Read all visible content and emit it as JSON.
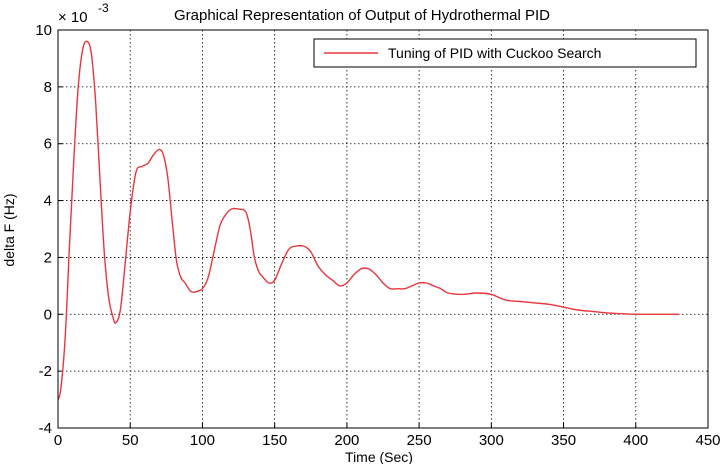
{
  "chart_data": {
    "type": "line",
    "title": "Graphical Representation of Output of Hydrothermal PID",
    "xlabel": "Time (Sec)",
    "ylabel": "delta F (Hz)",
    "y_exponent_base": "× 10",
    "y_exponent_power": "-3",
    "xlim": [
      0,
      450
    ],
    "ylim": [
      -4,
      10
    ],
    "x_ticks": [
      0,
      50,
      100,
      150,
      200,
      250,
      300,
      350,
      400,
      450
    ],
    "y_ticks": [
      -4,
      -2,
      0,
      2,
      4,
      6,
      8,
      10
    ],
    "grid": true,
    "grid_style": "dotted",
    "legend_position": "top-right",
    "line_color": "#e8373c",
    "series": [
      {
        "name": "Tuning of PID with Cuckoo Search",
        "x": [
          0,
          2,
          5,
          8,
          11,
          14,
          17,
          20,
          23,
          26,
          29,
          32,
          35,
          38,
          40,
          43,
          46,
          50,
          54,
          58,
          62,
          66,
          70,
          73,
          76,
          79,
          82,
          85,
          88,
          92,
          96,
          100,
          104,
          108,
          112,
          116,
          120,
          125,
          130,
          133,
          136,
          139,
          142,
          146,
          150,
          155,
          160,
          165,
          170,
          175,
          180,
          185,
          190,
          195,
          200,
          205,
          210,
          215,
          220,
          225,
          230,
          235,
          240,
          245,
          250,
          255,
          260,
          265,
          270,
          280,
          290,
          300,
          310,
          320,
          330,
          340,
          350,
          360,
          370,
          380,
          390,
          400,
          410,
          420,
          430
        ],
        "values": [
          -3.0,
          -2.6,
          -0.8,
          2.5,
          5.5,
          8.0,
          9.3,
          9.6,
          9.2,
          7.5,
          4.8,
          2.2,
          0.6,
          -0.1,
          -0.3,
          0.1,
          1.5,
          3.6,
          5.0,
          5.2,
          5.3,
          5.6,
          5.8,
          5.6,
          4.8,
          3.3,
          1.9,
          1.3,
          1.1,
          0.8,
          0.8,
          0.9,
          1.3,
          2.2,
          3.1,
          3.5,
          3.7,
          3.7,
          3.6,
          3.0,
          2.0,
          1.5,
          1.3,
          1.1,
          1.2,
          1.8,
          2.3,
          2.4,
          2.4,
          2.2,
          1.7,
          1.4,
          1.2,
          1.0,
          1.1,
          1.4,
          1.6,
          1.6,
          1.4,
          1.1,
          0.9,
          0.9,
          0.9,
          1.0,
          1.1,
          1.1,
          1.0,
          0.9,
          0.75,
          0.7,
          0.75,
          0.7,
          0.5,
          0.45,
          0.4,
          0.35,
          0.25,
          0.15,
          0.1,
          0.05,
          0.02,
          0.0,
          0.0,
          0.0,
          0.0
        ]
      }
    ]
  }
}
